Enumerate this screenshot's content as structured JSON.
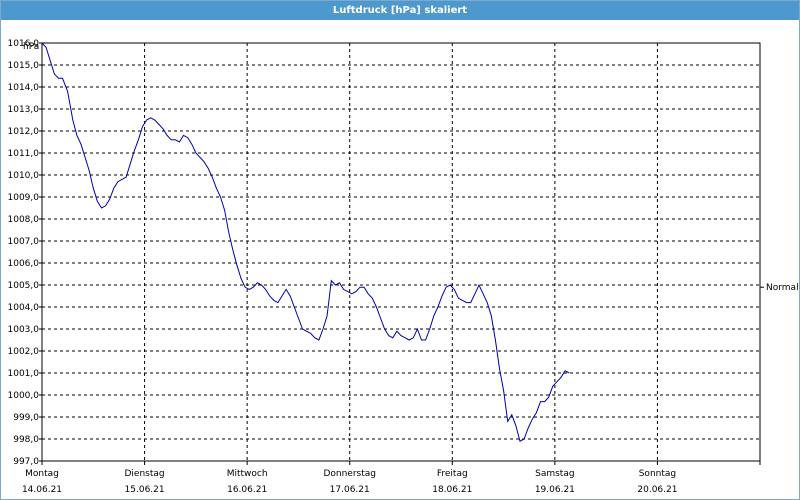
{
  "window": {
    "title": "Luftdruck [hPa] skaliert"
  },
  "chart_data": {
    "type": "line",
    "title": "Luftdruck [hPa] skaliert",
    "ylabel": "hPa",
    "ylim": [
      997.0,
      1016.0
    ],
    "yticks": [
      "1016,0",
      "1015,0",
      "1014,0",
      "1013,0",
      "1012,0",
      "1011,0",
      "1010,0",
      "1009,0",
      "1008,0",
      "1007,0",
      "1006,0",
      "1005,0",
      "1004,0",
      "1003,0",
      "1002,0",
      "1001,0",
      "1000,0",
      "999,0",
      "998,0",
      "997,0"
    ],
    "xticks": [
      {
        "day": "Montag",
        "date": "14.06.21"
      },
      {
        "day": "Dienstag",
        "date": "15.06.21"
      },
      {
        "day": "Mittwoch",
        "date": "16.06.21"
      },
      {
        "day": "Donnerstag",
        "date": "17.06.21"
      },
      {
        "day": "Freitag",
        "date": "18.06.21"
      },
      {
        "day": "Samstag",
        "date": "19.06.21"
      },
      {
        "day": "Sonntag",
        "date": "20.06.21"
      }
    ],
    "xlim_days": [
      0,
      7
    ],
    "reference_line": {
      "label": "Normal",
      "value": 1004.9
    },
    "grid": true,
    "series": [
      {
        "color": "#0000aa",
        "points": [
          [
            0.0,
            1016.0
          ],
          [
            0.04,
            1015.8
          ],
          [
            0.08,
            1015.2
          ],
          [
            0.12,
            1014.6
          ],
          [
            0.16,
            1014.4
          ],
          [
            0.2,
            1014.4
          ],
          [
            0.25,
            1013.8
          ],
          [
            0.3,
            1012.5
          ],
          [
            0.34,
            1011.8
          ],
          [
            0.38,
            1011.4
          ],
          [
            0.42,
            1010.8
          ],
          [
            0.46,
            1010.2
          ],
          [
            0.5,
            1009.4
          ],
          [
            0.54,
            1008.8
          ],
          [
            0.58,
            1008.5
          ],
          [
            0.62,
            1008.6
          ],
          [
            0.66,
            1008.9
          ],
          [
            0.7,
            1009.4
          ],
          [
            0.74,
            1009.7
          ],
          [
            0.78,
            1009.8
          ],
          [
            0.82,
            1009.9
          ],
          [
            0.86,
            1010.5
          ],
          [
            0.9,
            1011.1
          ],
          [
            0.94,
            1011.6
          ],
          [
            0.98,
            1012.2
          ],
          [
            1.02,
            1012.5
          ],
          [
            1.06,
            1012.6
          ],
          [
            1.1,
            1012.5
          ],
          [
            1.14,
            1012.3
          ],
          [
            1.18,
            1012.1
          ],
          [
            1.22,
            1011.8
          ],
          [
            1.26,
            1011.6
          ],
          [
            1.3,
            1011.6
          ],
          [
            1.34,
            1011.5
          ],
          [
            1.38,
            1011.8
          ],
          [
            1.42,
            1011.7
          ],
          [
            1.46,
            1011.4
          ],
          [
            1.5,
            1011.0
          ],
          [
            1.54,
            1010.8
          ],
          [
            1.58,
            1010.6
          ],
          [
            1.62,
            1010.3
          ],
          [
            1.66,
            1009.9
          ],
          [
            1.7,
            1009.4
          ],
          [
            1.74,
            1009.0
          ],
          [
            1.78,
            1008.4
          ],
          [
            1.82,
            1007.4
          ],
          [
            1.86,
            1006.6
          ],
          [
            1.9,
            1005.9
          ],
          [
            1.94,
            1005.3
          ],
          [
            1.98,
            1004.9
          ],
          [
            2.02,
            1004.8
          ],
          [
            2.06,
            1004.9
          ],
          [
            2.1,
            1005.1
          ],
          [
            2.14,
            1005.0
          ],
          [
            2.18,
            1004.8
          ],
          [
            2.22,
            1004.5
          ],
          [
            2.26,
            1004.3
          ],
          [
            2.3,
            1004.2
          ],
          [
            2.34,
            1004.5
          ],
          [
            2.38,
            1004.8
          ],
          [
            2.42,
            1004.5
          ],
          [
            2.46,
            1004.0
          ],
          [
            2.5,
            1003.5
          ],
          [
            2.54,
            1003.0
          ],
          [
            2.58,
            1002.9
          ],
          [
            2.62,
            1002.8
          ],
          [
            2.66,
            1002.6
          ],
          [
            2.7,
            1002.5
          ],
          [
            2.74,
            1003.0
          ],
          [
            2.78,
            1003.6
          ],
          [
            2.82,
            1005.2
          ],
          [
            2.86,
            1005.0
          ],
          [
            2.9,
            1005.1
          ],
          [
            2.94,
            1004.8
          ],
          [
            2.98,
            1004.7
          ],
          [
            3.02,
            1004.6
          ],
          [
            3.06,
            1004.7
          ],
          [
            3.1,
            1004.9
          ],
          [
            3.14,
            1004.9
          ],
          [
            3.18,
            1004.6
          ],
          [
            3.22,
            1004.4
          ],
          [
            3.26,
            1004.0
          ],
          [
            3.3,
            1003.5
          ],
          [
            3.34,
            1003.0
          ],
          [
            3.38,
            1002.7
          ],
          [
            3.42,
            1002.6
          ],
          [
            3.46,
            1002.9
          ],
          [
            3.5,
            1002.7
          ],
          [
            3.54,
            1002.6
          ],
          [
            3.58,
            1002.5
          ],
          [
            3.62,
            1002.6
          ],
          [
            3.66,
            1003.0
          ],
          [
            3.7,
            1002.5
          ],
          [
            3.74,
            1002.5
          ],
          [
            3.78,
            1003.0
          ],
          [
            3.82,
            1003.6
          ],
          [
            3.86,
            1004.0
          ],
          [
            3.9,
            1004.5
          ],
          [
            3.94,
            1004.9
          ],
          [
            3.98,
            1005.0
          ],
          [
            4.02,
            1004.8
          ],
          [
            4.06,
            1004.4
          ],
          [
            4.1,
            1004.3
          ],
          [
            4.14,
            1004.2
          ],
          [
            4.18,
            1004.2
          ],
          [
            4.22,
            1004.6
          ],
          [
            4.26,
            1005.0
          ],
          [
            4.3,
            1004.6
          ],
          [
            4.34,
            1004.2
          ],
          [
            4.38,
            1003.6
          ],
          [
            4.42,
            1002.5
          ],
          [
            4.46,
            1001.2
          ],
          [
            4.5,
            1000.2
          ],
          [
            4.54,
            998.8
          ],
          [
            4.58,
            999.1
          ],
          [
            4.62,
            998.6
          ],
          [
            4.66,
            997.9
          ],
          [
            4.7,
            998.0
          ],
          [
            4.74,
            998.5
          ],
          [
            4.78,
            998.9
          ],
          [
            4.82,
            999.2
          ],
          [
            4.86,
            999.7
          ],
          [
            4.9,
            999.7
          ],
          [
            4.94,
            999.9
          ],
          [
            4.98,
            1000.4
          ],
          [
            5.02,
            1000.6
          ],
          [
            5.06,
            1000.8
          ],
          [
            5.1,
            1001.1
          ],
          [
            5.14,
            1001.0
          ]
        ]
      }
    ]
  }
}
